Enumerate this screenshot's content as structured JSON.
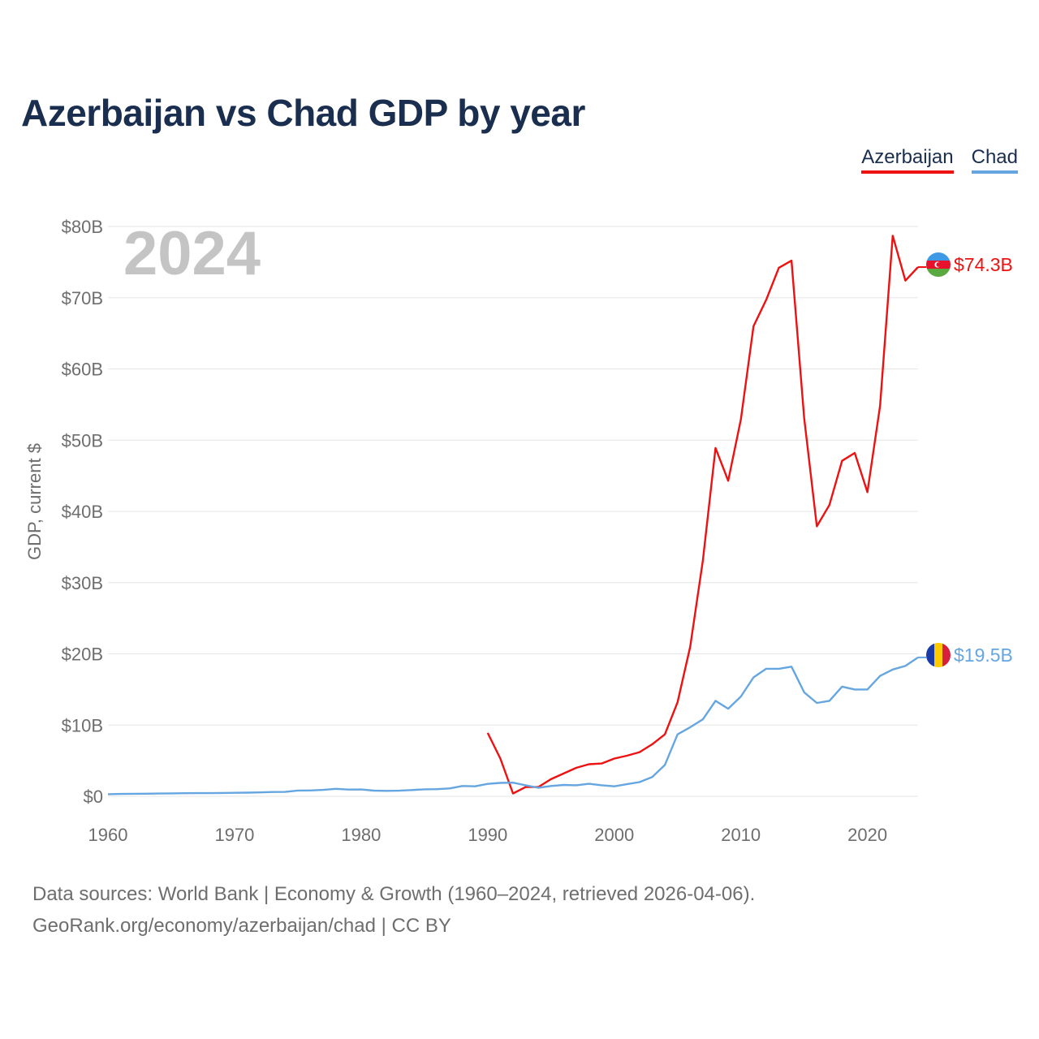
{
  "header": {
    "title": "Azerbaijan vs Chad GDP by year"
  },
  "legend": {
    "items": [
      "Azerbaijan",
      "Chad"
    ]
  },
  "footer": {
    "line1": "Data sources: World Bank | Economy & Growth (1960–2024, retrieved 2026-04-06).",
    "line2": "GeoRank.org/economy/azerbaijan/chad | CC BY"
  },
  "chart_data": {
    "type": "line",
    "title": "Azerbaijan vs Chad GDP by year",
    "xlabel": "",
    "ylabel": "GDP, current $",
    "xlim": [
      1960,
      2024
    ],
    "ylim": [
      0,
      80
    ],
    "grid": true,
    "year_watermark": "2024",
    "xticks": [
      1960,
      1970,
      1980,
      1990,
      2000,
      2010,
      2020
    ],
    "yticks": [
      0,
      10,
      20,
      30,
      40,
      50,
      60,
      70,
      80
    ],
    "ytick_labels": [
      "$0",
      "$10B",
      "$20B",
      "$30B",
      "$40B",
      "$50B",
      "$60B",
      "$70B",
      "$80B"
    ],
    "legend_position": "top-right",
    "series": [
      {
        "name": "Azerbaijan",
        "color": "#ee1111",
        "end_label": "$74.3B",
        "flag": "azerbaijan-flag",
        "x": [
          1990,
          1991,
          1992,
          1993,
          1994,
          1995,
          1996,
          1997,
          1998,
          1999,
          2000,
          2001,
          2002,
          2003,
          2004,
          2005,
          2006,
          2007,
          2008,
          2009,
          2010,
          2011,
          2012,
          2013,
          2014,
          2015,
          2016,
          2017,
          2018,
          2019,
          2020,
          2021,
          2022,
          2023,
          2024
        ],
        "values": [
          8.9,
          5.3,
          0.4,
          1.3,
          1.3,
          2.4,
          3.2,
          4.0,
          4.5,
          4.6,
          5.3,
          5.7,
          6.2,
          7.3,
          8.7,
          13.2,
          21.0,
          33.1,
          48.9,
          44.3,
          52.9,
          66.0,
          69.7,
          74.2,
          75.2,
          53.1,
          37.9,
          40.9,
          47.1,
          48.2,
          42.7,
          54.8,
          78.7,
          72.4,
          74.3
        ]
      },
      {
        "name": "Chad",
        "color": "#66a6e0",
        "end_label": "$19.5B",
        "flag": "chad-flag",
        "x": [
          1960,
          1961,
          1962,
          1963,
          1964,
          1965,
          1966,
          1967,
          1968,
          1969,
          1970,
          1971,
          1972,
          1973,
          1974,
          1975,
          1976,
          1977,
          1978,
          1979,
          1980,
          1981,
          1982,
          1983,
          1984,
          1985,
          1986,
          1987,
          1988,
          1989,
          1990,
          1991,
          1992,
          1993,
          1994,
          1995,
          1996,
          1997,
          1998,
          1999,
          2000,
          2001,
          2002,
          2003,
          2004,
          2005,
          2006,
          2007,
          2008,
          2009,
          2010,
          2011,
          2012,
          2013,
          2014,
          2015,
          2016,
          2017,
          2018,
          2019,
          2020,
          2021,
          2022,
          2023,
          2024
        ],
        "values": [
          0.3,
          0.33,
          0.35,
          0.37,
          0.39,
          0.41,
          0.43,
          0.44,
          0.45,
          0.47,
          0.49,
          0.51,
          0.55,
          0.6,
          0.62,
          0.81,
          0.82,
          0.9,
          1.05,
          0.95,
          0.96,
          0.8,
          0.76,
          0.79,
          0.88,
          0.98,
          1.0,
          1.1,
          1.45,
          1.4,
          1.74,
          1.88,
          1.92,
          1.55,
          1.2,
          1.45,
          1.6,
          1.55,
          1.75,
          1.55,
          1.4,
          1.7,
          2.0,
          2.7,
          4.4,
          8.7,
          9.7,
          10.8,
          13.4,
          12.3,
          14.0,
          16.7,
          17.9,
          17.9,
          18.2,
          14.6,
          13.1,
          13.4,
          15.4,
          15.0,
          15.0,
          16.9,
          17.8,
          18.3,
          19.5
        ]
      }
    ]
  }
}
